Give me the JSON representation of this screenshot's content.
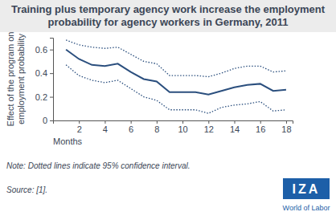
{
  "chart_data": {
    "type": "line",
    "title": "Training plus temporary agency work increase the employment probability for agency workers in Germany, 2011",
    "x_label": "Months",
    "y_label": "Effect of the program on employment probability",
    "note": "Note: Dotted lines indicate 95% confidence interval.",
    "source": "Source: [1].",
    "logo": {
      "top": "IZA",
      "bottom": "World of Labor"
    },
    "x": [
      1,
      2,
      3,
      4,
      5,
      6,
      7,
      8,
      9,
      10,
      11,
      12,
      13,
      14,
      15,
      16,
      17,
      18
    ],
    "series": [
      {
        "color": "#2b4f7e",
        "line_style": "solid",
        "values": [
          0.6,
          0.52,
          0.47,
          0.46,
          0.48,
          0.41,
          0.35,
          0.33,
          0.24,
          0.24,
          0.24,
          0.22,
          0.25,
          0.28,
          0.3,
          0.31,
          0.25,
          0.26
        ]
      },
      {
        "color": "#2b4f7e",
        "line_style": "dotted",
        "values": [
          0.68,
          0.64,
          0.62,
          0.61,
          0.62,
          0.56,
          0.5,
          0.48,
          0.38,
          0.38,
          0.38,
          0.37,
          0.4,
          0.44,
          0.46,
          0.46,
          0.41,
          0.42
        ]
      },
      {
        "color": "#2b4f7e",
        "line_style": "dotted",
        "values": [
          0.47,
          0.38,
          0.34,
          0.32,
          0.34,
          0.27,
          0.2,
          0.17,
          0.09,
          0.09,
          0.09,
          0.06,
          0.11,
          0.13,
          0.14,
          0.16,
          0.08,
          0.09
        ]
      }
    ],
    "xlim": [
      0,
      18.5
    ],
    "ylim": [
      0,
      0.7
    ],
    "xticks": [
      2,
      4,
      6,
      8,
      10,
      12,
      14,
      16,
      18
    ],
    "yticks": [
      0,
      0.2,
      0.4,
      0.6
    ],
    "grid": false
  }
}
